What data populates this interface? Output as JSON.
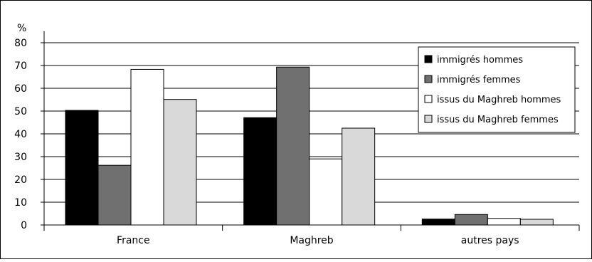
{
  "chart_data": {
    "type": "bar",
    "ylabel": "%",
    "ylim": [
      0,
      80
    ],
    "yticks": [
      0,
      10,
      20,
      30,
      40,
      50,
      60,
      70,
      80
    ],
    "grid": true,
    "legend_position": "top-right",
    "categories": [
      "France",
      "Maghreb",
      "autres pays"
    ],
    "series": [
      {
        "name": "immigrés hommes",
        "color": "#000000",
        "values": [
          50.3,
          47.1,
          2.6
        ]
      },
      {
        "name": "immigrés femmes",
        "color": "#707070",
        "values": [
          26.2,
          69.3,
          4.6
        ]
      },
      {
        "name": "issus du Maghreb hommes",
        "color": "#ffffff",
        "values": [
          68.3,
          29.0,
          2.9
        ]
      },
      {
        "name": "issus du Maghreb femmes",
        "color": "#d9d9d9",
        "values": [
          55.1,
          42.5,
          2.5
        ]
      }
    ]
  }
}
